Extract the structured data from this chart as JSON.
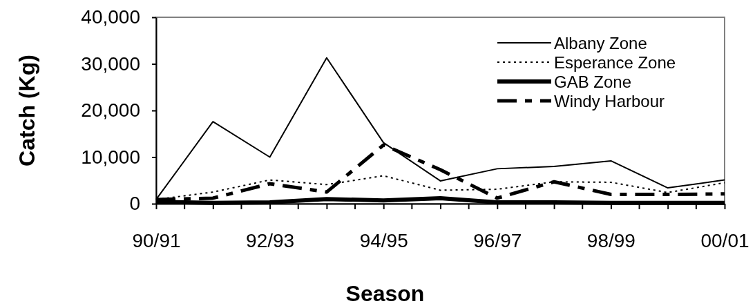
{
  "chart_data": {
    "type": "line",
    "xlabel": "Season",
    "ylabel": "Catch (Kg)",
    "categories": [
      "90/91",
      null,
      "92/93",
      null,
      "94/95",
      null,
      "96/97",
      null,
      "98/99",
      null,
      "00/01"
    ],
    "ylim": [
      0,
      40000
    ],
    "yticks": [
      {
        "value": 0,
        "label": "0"
      },
      {
        "value": 10000,
        "label": "10,000"
      },
      {
        "value": 20000,
        "label": "20,000"
      },
      {
        "value": 30000,
        "label": "30,000"
      },
      {
        "value": 40000,
        "label": "40,000"
      }
    ],
    "grid": false,
    "legend": "top right",
    "marker": "none",
    "series": [
      {
        "name": "Albany Zone",
        "color": "#000000",
        "line_style": "solid",
        "values": [
          900,
          17600,
          10000,
          31300,
          13100,
          4900,
          7500,
          8000,
          9200,
          3400,
          5100
        ]
      },
      {
        "name": "Esperance Zone",
        "color": "#000000",
        "line_style": "dotted",
        "values": [
          900,
          2500,
          5100,
          4100,
          6000,
          2900,
          3100,
          4700,
          4600,
          2400,
          4500
        ]
      },
      {
        "name": "GAB Zone",
        "color": "#000000",
        "line_style": "solid",
        "values": [
          400,
          200,
          300,
          1000,
          700,
          1200,
          300,
          300,
          200,
          200,
          200
        ]
      },
      {
        "name": "Windy Harbour",
        "color": "#000000",
        "line_style": "dashed",
        "values": [
          900,
          1200,
          4300,
          2500,
          12600,
          7300,
          1200,
          4700,
          2000,
          2000,
          2100
        ]
      }
    ]
  }
}
